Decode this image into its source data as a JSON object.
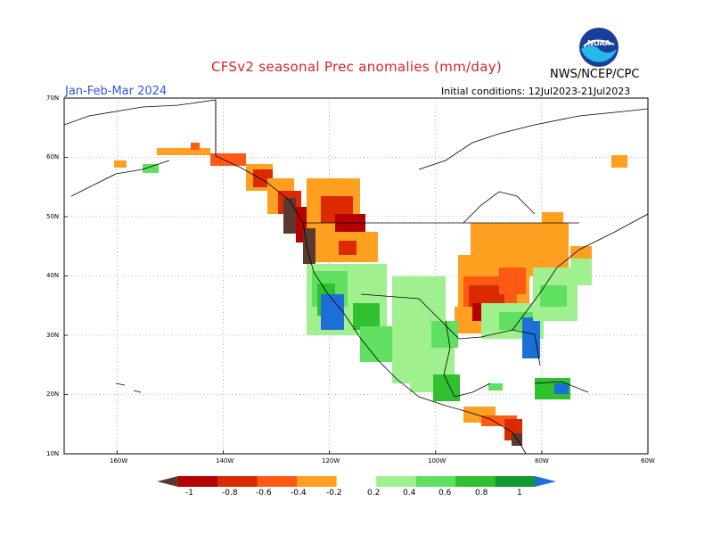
{
  "header": {
    "title": "CFSv2 seasonal Prec anomalies (mm/day)",
    "agency": "NWS/NCEP/CPC",
    "period": "Jan-Feb-Mar 2024",
    "initial_conditions": "Initial conditions: 12Jul2023-21Jul2023",
    "logo_text": "NOAA"
  },
  "map": {
    "lat_labels": [
      "70N",
      "60N",
      "50N",
      "40N",
      "30N",
      "20N",
      "10N"
    ],
    "lon_labels": [
      "160W",
      "140W",
      "120W",
      "100W",
      "80W",
      "60W"
    ],
    "extent": {
      "lon_min": -170,
      "lon_max": -60,
      "lat_min": 10,
      "lat_max": 70
    },
    "grid": true,
    "projection": "cylindrical"
  },
  "legend": {
    "labels": [
      "-1",
      "-0.8",
      "-0.6",
      "-0.4",
      "-0.2",
      "0.2",
      "0.4",
      "0.6",
      "0.8",
      "1"
    ],
    "colors": [
      "#5a3a2e",
      "#b40000",
      "#dc2a00",
      "#ff5a14",
      "#ffa020",
      "#ffffff",
      "#a0f090",
      "#60e060",
      "#30c030",
      "#109a30",
      "#1e6ed8"
    ]
  }
}
